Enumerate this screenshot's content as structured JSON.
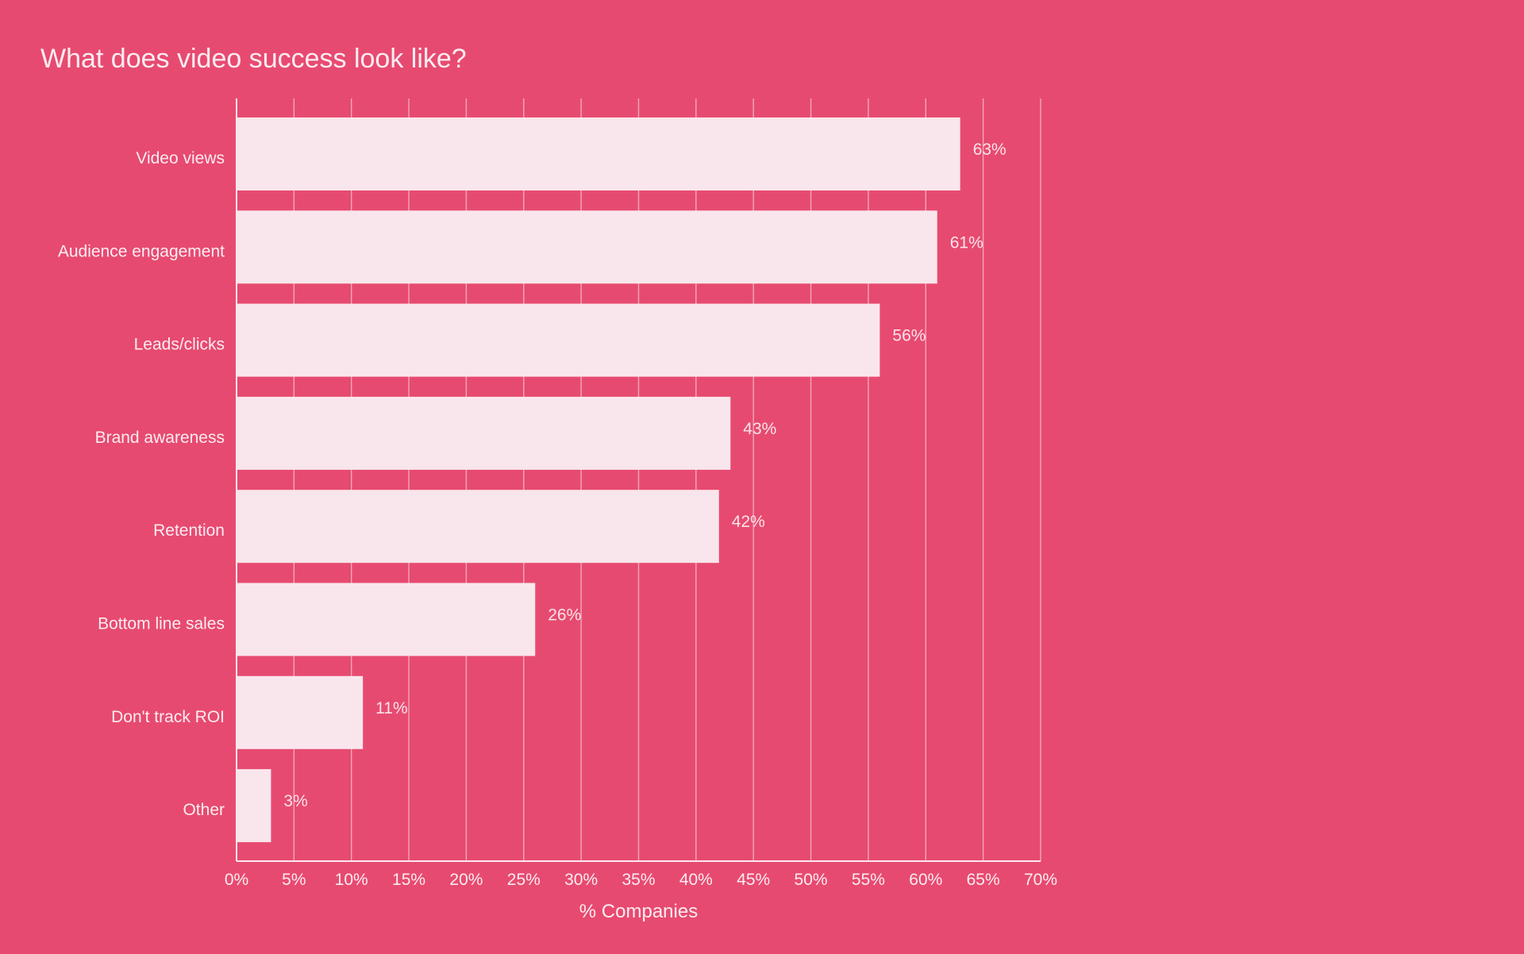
{
  "colors": {
    "background": "#e74a70",
    "bar_fill": "#f9e6ec",
    "gridline": "#f3a6ba",
    "axis": "#fbe7ed",
    "text": "#fcecf1",
    "value_label": "#fbe3ea"
  },
  "chart_data": {
    "type": "bar",
    "orientation": "horizontal",
    "title": "What does video success look like?",
    "xlabel": "% Companies",
    "ylabel": "",
    "categories": [
      "Video views",
      "Audience engagement",
      "Leads/clicks",
      "Brand awareness",
      "Retention",
      "Bottom line sales",
      "Don't track ROI",
      "Other"
    ],
    "values": [
      63,
      61,
      56,
      43,
      42,
      26,
      11,
      3
    ],
    "value_labels": [
      "63%",
      "61%",
      "56%",
      "43%",
      "42%",
      "26%",
      "11%",
      "3%"
    ],
    "xlim": [
      0,
      70
    ],
    "xticks": [
      0,
      5,
      10,
      15,
      20,
      25,
      30,
      35,
      40,
      45,
      50,
      55,
      60,
      65,
      70
    ],
    "xtick_labels": [
      "0%",
      "5%",
      "10%",
      "15%",
      "20%",
      "25%",
      "30%",
      "35%",
      "40%",
      "45%",
      "50%",
      "55%",
      "60%",
      "65%",
      "70%"
    ],
    "grid": true,
    "legend": "none"
  }
}
